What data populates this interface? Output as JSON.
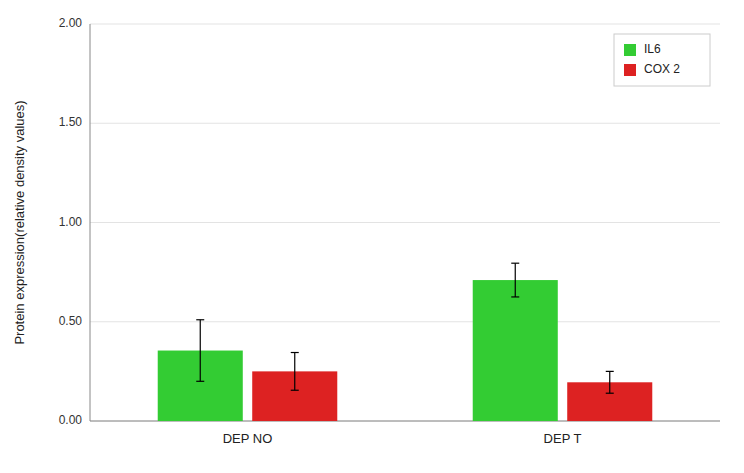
{
  "chart_data": {
    "type": "bar",
    "categories": [
      "DEP NO",
      "DEP T"
    ],
    "series": [
      {
        "name": "IL6",
        "color": "#33cc33",
        "values": [
          0.355,
          0.71
        ],
        "errors": [
          0.155,
          0.085
        ]
      },
      {
        "name": "COX 2",
        "color": "#dd2222",
        "values": [
          0.25,
          0.195
        ],
        "errors": [
          0.095,
          0.055
        ]
      }
    ],
    "y_label": "Protein expression(relative density values)",
    "ylim": [
      0,
      2.0
    ],
    "yticks": [
      {
        "value": 0.0,
        "label": "0.00"
      },
      {
        "value": 0.5,
        "label": "0.50"
      },
      {
        "value": 1.0,
        "label": "1.00"
      },
      {
        "value": 1.5,
        "label": "1.50"
      },
      {
        "value": 2.0,
        "label": "2.00"
      }
    ],
    "grid": true,
    "legend": "upper right"
  }
}
